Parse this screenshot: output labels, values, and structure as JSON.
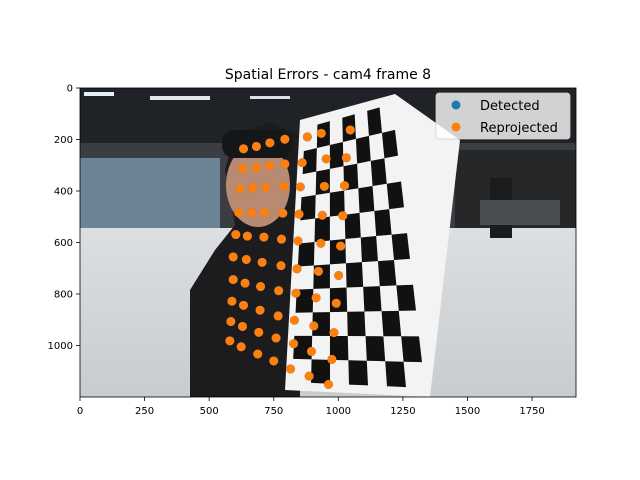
{
  "chart_data": {
    "type": "scatter",
    "title": "Spatial Errors - cam4 frame 8",
    "xlabel": "",
    "ylabel": "",
    "xlim": [
      0,
      1920
    ],
    "ylim": [
      1200,
      0
    ],
    "y_inverted": true,
    "xticks": [
      0,
      250,
      500,
      750,
      1000,
      1250,
      1500,
      1750
    ],
    "yticks": [
      0,
      200,
      400,
      600,
      800,
      1000
    ],
    "grid": false,
    "legend_position": "top-right",
    "background": "photo of a person holding a checkerboard calibration target",
    "series": [
      {
        "name": "Detected",
        "color": "#1f77b4",
        "points": [
          [
            633,
            236
          ],
          [
            683,
            227
          ],
          [
            735,
            213
          ],
          [
            793,
            199
          ],
          [
            880,
            190
          ],
          [
            934,
            176
          ],
          [
            1046,
            163
          ],
          [
            629,
            314
          ],
          [
            683,
            310
          ],
          [
            735,
            302
          ],
          [
            793,
            295
          ],
          [
            860,
            290
          ],
          [
            953,
            275
          ],
          [
            1031,
            271
          ],
          [
            620,
            392
          ],
          [
            669,
            388
          ],
          [
            720,
            386
          ],
          [
            789,
            382
          ],
          [
            853,
            384
          ],
          [
            946,
            382
          ],
          [
            1024,
            379
          ],
          [
            614,
            484
          ],
          [
            665,
            484
          ],
          [
            714,
            484
          ],
          [
            785,
            486
          ],
          [
            848,
            490
          ],
          [
            938,
            494
          ],
          [
            1017,
            496
          ],
          [
            603,
            569
          ],
          [
            648,
            575
          ],
          [
            712,
            579
          ],
          [
            780,
            587
          ],
          [
            844,
            594
          ],
          [
            932,
            603
          ],
          [
            1009,
            614
          ],
          [
            593,
            656
          ],
          [
            644,
            666
          ],
          [
            705,
            677
          ],
          [
            778,
            690
          ],
          [
            840,
            702
          ],
          [
            923,
            712
          ],
          [
            1001,
            728
          ],
          [
            593,
            744
          ],
          [
            639,
            758
          ],
          [
            699,
            771
          ],
          [
            769,
            787
          ],
          [
            836,
            797
          ],
          [
            914,
            815
          ],
          [
            992,
            836
          ],
          [
            588,
            828
          ],
          [
            633,
            844
          ],
          [
            697,
            863
          ],
          [
            767,
            885
          ],
          [
            830,
            902
          ],
          [
            905,
            924
          ],
          [
            983,
            950
          ],
          [
            584,
            907
          ],
          [
            629,
            926
          ],
          [
            692,
            949
          ],
          [
            759,
            971
          ],
          [
            827,
            993
          ],
          [
            896,
            1023
          ],
          [
            975,
            1054
          ],
          [
            580,
            982
          ],
          [
            624,
            1005
          ],
          [
            688,
            1033
          ],
          [
            750,
            1060
          ],
          [
            815,
            1091
          ],
          [
            887,
            1119
          ],
          [
            962,
            1151
          ]
        ]
      },
      {
        "name": "Reprojected",
        "color": "#ff7f0e",
        "points": [
          [
            633,
            236
          ],
          [
            683,
            227
          ],
          [
            735,
            213
          ],
          [
            793,
            199
          ],
          [
            880,
            190
          ],
          [
            934,
            176
          ],
          [
            1046,
            163
          ],
          [
            629,
            314
          ],
          [
            683,
            310
          ],
          [
            735,
            302
          ],
          [
            793,
            295
          ],
          [
            860,
            290
          ],
          [
            953,
            275
          ],
          [
            1031,
            271
          ],
          [
            620,
            392
          ],
          [
            669,
            388
          ],
          [
            720,
            386
          ],
          [
            789,
            382
          ],
          [
            853,
            384
          ],
          [
            946,
            382
          ],
          [
            1024,
            379
          ],
          [
            614,
            484
          ],
          [
            665,
            484
          ],
          [
            714,
            484
          ],
          [
            785,
            486
          ],
          [
            848,
            490
          ],
          [
            938,
            494
          ],
          [
            1017,
            496
          ],
          [
            603,
            569
          ],
          [
            648,
            575
          ],
          [
            712,
            579
          ],
          [
            780,
            587
          ],
          [
            844,
            594
          ],
          [
            932,
            603
          ],
          [
            1009,
            614
          ],
          [
            593,
            656
          ],
          [
            644,
            666
          ],
          [
            705,
            677
          ],
          [
            778,
            690
          ],
          [
            840,
            702
          ],
          [
            923,
            712
          ],
          [
            1001,
            728
          ],
          [
            593,
            744
          ],
          [
            639,
            758
          ],
          [
            699,
            771
          ],
          [
            769,
            787
          ],
          [
            836,
            797
          ],
          [
            914,
            815
          ],
          [
            992,
            836
          ],
          [
            588,
            828
          ],
          [
            633,
            844
          ],
          [
            697,
            863
          ],
          [
            767,
            885
          ],
          [
            830,
            902
          ],
          [
            905,
            924
          ],
          [
            983,
            950
          ],
          [
            584,
            907
          ],
          [
            629,
            926
          ],
          [
            692,
            949
          ],
          [
            759,
            971
          ],
          [
            827,
            993
          ],
          [
            896,
            1023
          ],
          [
            975,
            1054
          ],
          [
            580,
            982
          ],
          [
            624,
            1005
          ],
          [
            688,
            1033
          ],
          [
            750,
            1060
          ],
          [
            815,
            1091
          ],
          [
            887,
            1119
          ],
          [
            962,
            1151
          ]
        ]
      }
    ]
  }
}
